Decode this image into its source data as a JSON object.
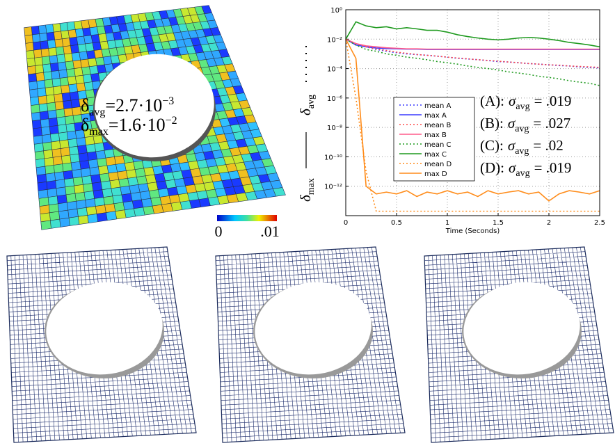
{
  "chart_data": {
    "type": "line",
    "xlabel": "Time (Seconds)",
    "ylabel": {
      "avg": {
        "symbol": "δ",
        "sub": "avg"
      },
      "max": {
        "symbol": "δ",
        "sub": "max"
      }
    },
    "log_y": true,
    "grid": true,
    "legend": "center",
    "xlim": [
      0,
      2.5
    ],
    "xticks": [
      0,
      0.5,
      1,
      1.5,
      2,
      2.5
    ],
    "ylim": [
      1e-14,
      1
    ],
    "yticks": [
      {
        "value": 1,
        "label": "10⁰"
      },
      {
        "value": 0.01,
        "label": "10⁻²"
      },
      {
        "value": 0.0001,
        "label": "10⁻⁴"
      },
      {
        "value": 1e-06,
        "label": "10⁻⁶"
      },
      {
        "value": 1e-08,
        "label": "10⁻⁸"
      },
      {
        "value": 1e-10,
        "label": "10⁻¹⁰"
      },
      {
        "value": 1e-12,
        "label": "10⁻¹²"
      }
    ],
    "x": [
      0,
      0.1,
      0.2,
      0.3,
      0.4,
      0.5,
      0.6,
      0.7,
      0.8,
      0.9,
      1,
      1.1,
      1.2,
      1.3,
      1.4,
      1.5,
      1.6,
      1.7,
      1.8,
      1.9,
      2,
      2.1,
      2.2,
      2.3,
      2.4,
      2.5
    ],
    "series": [
      {
        "name": "mean A",
        "color": "#3a3aff",
        "style": "dotted",
        "values": [
          0.01,
          0.004,
          0.003,
          0.002,
          0.0015,
          0.0012,
          0.001,
          0.0009,
          0.0008,
          0.0007,
          0.0006,
          0.0005,
          0.00045,
          0.0004,
          0.00035,
          0.0003,
          0.00028,
          0.00025,
          0.00022,
          0.0002,
          0.00018,
          0.00016,
          0.00015,
          0.00013,
          0.00012,
          0.00011
        ]
      },
      {
        "name": "max A",
        "color": "#3a3aff",
        "style": "solid",
        "values": [
          0.01,
          0.004,
          0.003,
          0.0025,
          0.0023,
          0.0022,
          0.0021,
          0.0021,
          0.002,
          0.002,
          0.002,
          0.002,
          0.002,
          0.002,
          0.002,
          0.002,
          0.002,
          0.002,
          0.002,
          0.002,
          0.002,
          0.002,
          0.002,
          0.002,
          0.002,
          0.002
        ]
      },
      {
        "name": "mean B",
        "color": "#ff4a4a",
        "style": "dotted",
        "values": [
          0.01,
          0.005,
          0.003,
          0.0022,
          0.0017,
          0.0013,
          0.0011,
          0.0009,
          0.0008,
          0.0007,
          0.0006,
          0.00052,
          0.00046,
          0.0004,
          0.00036,
          0.00032,
          0.00028,
          0.00025,
          0.00022,
          0.0002,
          0.00018,
          0.00017,
          0.00015,
          0.00014,
          0.00013,
          0.00012
        ]
      },
      {
        "name": "max B",
        "color": "#ff5a8a",
        "style": "solid",
        "values": [
          0.01,
          0.005,
          0.0035,
          0.003,
          0.0026,
          0.0024,
          0.0022,
          0.0022,
          0.0021,
          0.0021,
          0.0021,
          0.0021,
          0.0021,
          0.0021,
          0.0021,
          0.0021,
          0.0021,
          0.0021,
          0.0021,
          0.0021,
          0.0021,
          0.0021,
          0.0021,
          0.0021,
          0.0021,
          0.0021
        ]
      },
      {
        "name": "mean C",
        "color": "#1f9a1f",
        "style": "dotted",
        "values": [
          0.01,
          0.004,
          0.002,
          0.0015,
          0.001,
          0.0008,
          0.0006,
          0.0005,
          0.0004,
          0.0003,
          0.00025,
          0.0002,
          0.00015,
          0.00012,
          0.0001,
          8e-05,
          6e-05,
          5e-05,
          4e-05,
          3e-05,
          2.5e-05,
          2e-05,
          1.5e-05,
          1.2e-05,
          1e-05,
          7e-06
        ]
      },
      {
        "name": "max C",
        "color": "#1f9a1f",
        "style": "solid",
        "values": [
          0.01,
          0.15,
          0.08,
          0.06,
          0.07,
          0.05,
          0.06,
          0.05,
          0.04,
          0.04,
          0.03,
          0.02,
          0.015,
          0.012,
          0.01,
          0.009,
          0.01,
          0.012,
          0.013,
          0.012,
          0.01,
          0.008,
          0.006,
          0.005,
          0.004,
          0.003
        ]
      },
      {
        "name": "mean D",
        "color": "#ff8c1a",
        "style": "dotted",
        "values": [
          0.01,
          1e-06,
          1e-11,
          2e-14,
          2e-14,
          2e-14,
          2e-14,
          2e-14,
          2e-14,
          2e-14,
          2e-14,
          2e-14,
          2e-14,
          2e-14,
          2e-14,
          2e-14,
          2e-14,
          2e-14,
          2e-14,
          2e-14,
          2e-14,
          2e-14,
          2e-14,
          2e-14,
          2e-14,
          2e-14
        ]
      },
      {
        "name": "max D",
        "color": "#ff8c1a",
        "style": "solid",
        "values": [
          0.01,
          0.0005,
          1e-12,
          3e-13,
          4e-13,
          3e-13,
          5e-13,
          2e-13,
          4e-13,
          3e-13,
          5e-13,
          3e-13,
          4e-13,
          2e-13,
          5e-13,
          3e-13,
          4e-13,
          5e-13,
          3e-13,
          4e-13,
          1e-13,
          3e-13,
          5e-13,
          4e-13,
          3e-13,
          5e-13
        ]
      }
    ],
    "annotations": [
      {
        "label": "(A):",
        "symbol": "σ",
        "sub": "avg",
        "text": "= .019"
      },
      {
        "label": "(B):",
        "symbol": "σ",
        "sub": "avg",
        "text": "= .027"
      },
      {
        "label": "(C):",
        "symbol": "σ",
        "sub": "avg",
        "text": "= .02"
      },
      {
        "label": "(D):",
        "symbol": "σ",
        "sub": "avg",
        "text": "= .019"
      }
    ]
  },
  "mesh_stats": [
    {
      "symbol": "δ",
      "sub": "avg",
      "text": "=2.7·10",
      "exp": "−3"
    },
    {
      "symbol": "δ",
      "sub": "max",
      "text": "=1.6·10",
      "exp": "−2"
    }
  ],
  "colorbar": {
    "min_label": "0",
    "max_label": ".01"
  }
}
